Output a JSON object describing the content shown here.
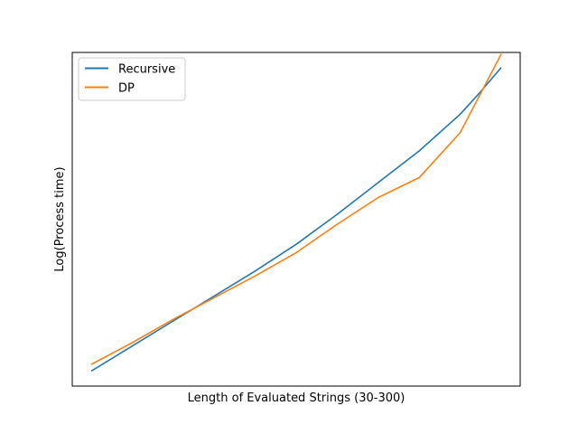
{
  "chart_data": {
    "type": "line",
    "title": "",
    "xlabel": "Length of Evaluated Strings (30-300)",
    "ylabel": "Log(Process time)",
    "x": [
      30,
      57,
      84,
      111,
      138,
      165,
      192,
      219,
      246,
      273,
      300
    ],
    "xlim": [
      17.5,
      312.5
    ],
    "ylim": [
      0,
      1
    ],
    "grid": false,
    "legend_position": "top-left",
    "series": [
      {
        "name": "Recursive",
        "color": "#1f77b4",
        "values": [
          0.045,
          0.12,
          0.195,
          0.27,
          0.345,
          0.425,
          0.515,
          0.61,
          0.705,
          0.815,
          0.955
        ],
        "extra_points": [
          [
            286,
            0.88
          ]
        ]
      },
      {
        "name": "DP",
        "color": "#ff7f0e",
        "values": [
          0.065,
          0.13,
          0.2,
          0.265,
          0.33,
          0.4,
          0.485,
          0.565,
          0.625,
          0.76,
          0.995
        ]
      }
    ]
  }
}
